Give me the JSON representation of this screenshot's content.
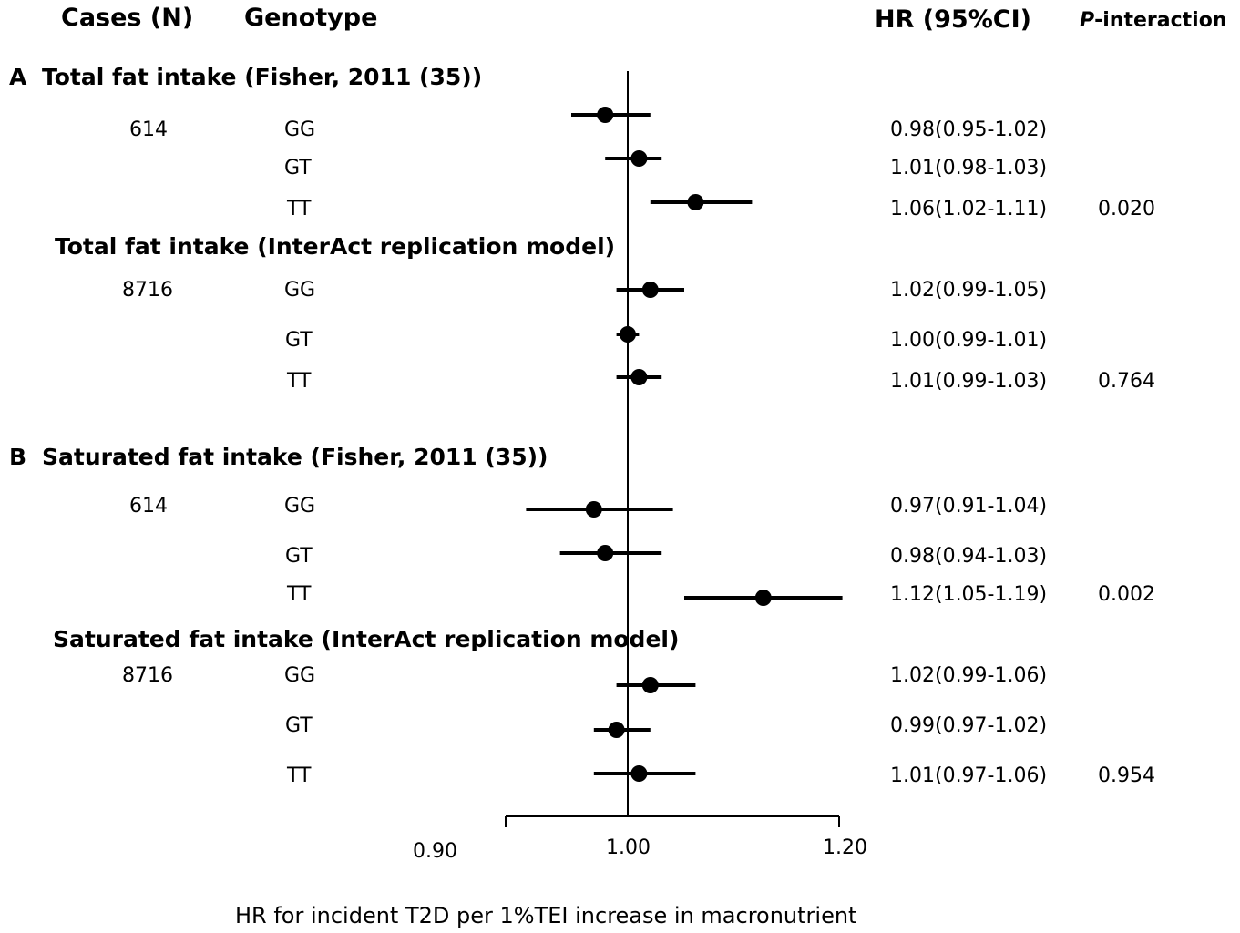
{
  "headers": {
    "cases": "Cases (N)",
    "genotype": "Genotype",
    "hr": "HR (95%CI)",
    "p_prefix": "P",
    "p_suffix": "-interaction"
  },
  "sections": [
    {
      "letter": "A",
      "title": "Total fat intake (Fisher, 2011 (35))",
      "cases": "614",
      "rows": [
        {
          "genotype": "GG",
          "hr_text": "0.98(0.95-1.02)",
          "p": ""
        },
        {
          "genotype": "GT",
          "hr_text": "1.01(0.98-1.03)",
          "p": ""
        },
        {
          "genotype": "TT",
          "hr_text": "1.06(1.02-1.11)",
          "p": "0.020"
        }
      ]
    },
    {
      "letter": "",
      "title": "Total fat intake (InterAct replication model)",
      "cases": "8716",
      "rows": [
        {
          "genotype": "GG",
          "hr_text": "1.02(0.99-1.05)",
          "p": ""
        },
        {
          "genotype": "GT",
          "hr_text": "1.00(0.99-1.01)",
          "p": ""
        },
        {
          "genotype": "TT",
          "hr_text": "1.01(0.99-1.03)",
          "p": "0.764"
        }
      ]
    },
    {
      "letter": "B",
      "title": "Saturated fat intake (Fisher, 2011 (35))",
      "cases": "614",
      "rows": [
        {
          "genotype": "GG",
          "hr_text": "0.97(0.91-1.04)",
          "p": ""
        },
        {
          "genotype": "GT",
          "hr_text": "0.98(0.94-1.03)",
          "p": ""
        },
        {
          "genotype": "TT",
          "hr_text": "1.12(1.05-1.19)",
          "p": "0.002"
        }
      ]
    },
    {
      "letter": "",
      "title": "Saturated fat intake (InterAct replication model)",
      "cases": "8716",
      "rows": [
        {
          "genotype": "GG",
          "hr_text": "1.02(0.99-1.06)",
          "p": ""
        },
        {
          "genotype": "GT",
          "hr_text": "0.99(0.97-1.02)",
          "p": ""
        },
        {
          "genotype": "TT",
          "hr_text": "1.01(0.97-1.06)",
          "p": "0.954"
        }
      ]
    }
  ],
  "chart_data": {
    "type": "scatter",
    "subtype": "forest",
    "xlabel": "HR for incident T2D per 1%TEI increase in macronutrient",
    "xticks": [
      "0.90",
      "1.00",
      "1.20"
    ],
    "xlim": [
      0.9,
      1.2
    ],
    "reference_line": 1.0,
    "points": [
      {
        "group": "Total fat intake (Fisher, 2011 (35))",
        "genotype": "GG",
        "hr": 0.98,
        "lo": 0.95,
        "hi": 1.02
      },
      {
        "group": "Total fat intake (Fisher, 2011 (35))",
        "genotype": "GT",
        "hr": 1.01,
        "lo": 0.98,
        "hi": 1.03
      },
      {
        "group": "Total fat intake (Fisher, 2011 (35))",
        "genotype": "TT",
        "hr": 1.06,
        "lo": 1.02,
        "hi": 1.11
      },
      {
        "group": "Total fat intake (InterAct replication model)",
        "genotype": "GG",
        "hr": 1.02,
        "lo": 0.99,
        "hi": 1.05
      },
      {
        "group": "Total fat intake (InterAct replication model)",
        "genotype": "GT",
        "hr": 1.0,
        "lo": 0.99,
        "hi": 1.01
      },
      {
        "group": "Total fat intake (InterAct replication model)",
        "genotype": "TT",
        "hr": 1.01,
        "lo": 0.99,
        "hi": 1.03
      },
      {
        "group": "Saturated fat intake (Fisher, 2011 (35))",
        "genotype": "GG",
        "hr": 0.97,
        "lo": 0.91,
        "hi": 1.04
      },
      {
        "group": "Saturated fat intake (Fisher, 2011 (35))",
        "genotype": "GT",
        "hr": 0.98,
        "lo": 0.94,
        "hi": 1.03
      },
      {
        "group": "Saturated fat intake (Fisher, 2011 (35))",
        "genotype": "TT",
        "hr": 1.12,
        "lo": 1.05,
        "hi": 1.19
      },
      {
        "group": "Saturated fat intake (InterAct replication model)",
        "genotype": "GG",
        "hr": 1.02,
        "lo": 0.99,
        "hi": 1.06
      },
      {
        "group": "Saturated fat intake (InterAct replication model)",
        "genotype": "GT",
        "hr": 0.99,
        "lo": 0.97,
        "hi": 1.02
      },
      {
        "group": "Saturated fat intake (InterAct replication model)",
        "genotype": "TT",
        "hr": 1.01,
        "lo": 0.97,
        "hi": 1.06
      }
    ]
  }
}
